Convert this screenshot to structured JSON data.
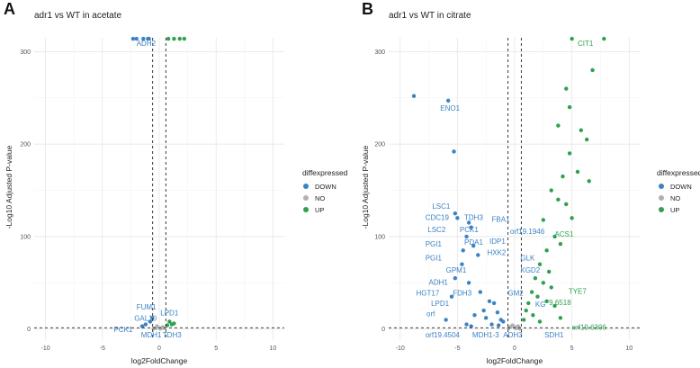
{
  "colors": {
    "down": "#3b82c4",
    "no": "#b0b0b0",
    "up": "#2ea04f",
    "grid_major": "#e6e6e6",
    "grid_minor": "#f3f3f3"
  },
  "legend": {
    "title": "diffexpressed",
    "items": [
      {
        "label": "DOWN",
        "key": "down"
      },
      {
        "label": "NO",
        "key": "no"
      },
      {
        "label": "UP",
        "key": "up"
      }
    ]
  },
  "chart_data": [
    {
      "panel_label": "A",
      "type": "scatter",
      "title": "adr1 vs WT in acetate",
      "xlabel": "log2FoldChange",
      "ylabel": "-Log10 Adjusted P-value",
      "xlim": [
        -11,
        11
      ],
      "ylim": [
        -12,
        315
      ],
      "xticks": [
        "-10",
        "-5",
        "0",
        "5",
        "10"
      ],
      "yticks": [
        "0",
        "100",
        "200",
        "300"
      ],
      "xtick_values": [
        -10,
        -5,
        0,
        5,
        10
      ],
      "ytick_values": [
        0,
        100,
        200,
        300
      ],
      "vlines": [
        -0.58,
        0.58
      ],
      "hline": 1.3,
      "legend_position": "right",
      "points": {
        "down": [
          [
            -2.0,
            314
          ],
          [
            -2.3,
            314
          ],
          [
            -1.4,
            314
          ],
          [
            -1.0,
            314
          ],
          [
            -0.9,
            314
          ],
          [
            -0.6,
            12
          ],
          [
            -0.8,
            8
          ],
          [
            -1.2,
            5
          ],
          [
            -1.5,
            3
          ]
        ],
        "no": [
          [
            -0.3,
            1
          ],
          [
            0.1,
            0.5
          ],
          [
            0.3,
            2
          ],
          [
            -0.2,
            3
          ],
          [
            0.4,
            1
          ],
          [
            -0.5,
            0.5
          ]
        ],
        "up": [
          [
            0.8,
            314
          ],
          [
            1.3,
            314
          ],
          [
            1.8,
            314
          ],
          [
            2.2,
            314
          ],
          [
            0.9,
            8
          ],
          [
            1.1,
            5
          ],
          [
            0.7,
            4
          ],
          [
            1.3,
            6
          ]
        ]
      },
      "labels": [
        {
          "text": "ADH2",
          "x": -2.0,
          "y": 306,
          "color": "down"
        },
        {
          "text": "FUM1",
          "x": -2.0,
          "y": 21,
          "color": "down"
        },
        {
          "text": "GAL10",
          "x": -2.2,
          "y": 9,
          "color": "down"
        },
        {
          "text": "LPD1",
          "x": 0.1,
          "y": 15,
          "color": "down"
        },
        {
          "text": "PCK1",
          "x": -4.0,
          "y": -3,
          "color": "down"
        },
        {
          "text": "MDH1",
          "x": -1.6,
          "y": -9,
          "color": "down"
        },
        {
          "text": "TDH3",
          "x": 0.3,
          "y": -9,
          "color": "down"
        }
      ]
    },
    {
      "panel_label": "B",
      "type": "scatter",
      "title": "adr1 vs WT in citrate",
      "xlabel": "log2FoldChange",
      "ylabel": "-Log10 Adjusted P-value",
      "xlim": [
        -11,
        11
      ],
      "ylim": [
        -12,
        315
      ],
      "xticks": [
        "-10",
        "-5",
        "0",
        "5",
        "10"
      ],
      "yticks": [
        "0",
        "100",
        "200",
        "300"
      ],
      "xtick_values": [
        -10,
        -5,
        0,
        5,
        10
      ],
      "ytick_values": [
        0,
        100,
        200,
        300
      ],
      "vlines": [
        -0.58,
        0.58
      ],
      "hline": 1.3,
      "legend_position": "right",
      "points": {
        "down": [
          [
            -8.8,
            252
          ],
          [
            -5.8,
            247
          ],
          [
            -5.3,
            192
          ],
          [
            -5.2,
            125
          ],
          [
            -4.0,
            115
          ],
          [
            -3.8,
            110
          ],
          [
            -4.2,
            100
          ],
          [
            -3.6,
            90
          ],
          [
            -3.2,
            80
          ],
          [
            -4.6,
            70
          ],
          [
            -5.2,
            55
          ],
          [
            -4.0,
            50
          ],
          [
            -5.5,
            35
          ],
          [
            -3.0,
            40
          ],
          [
            -2.2,
            30
          ],
          [
            -1.8,
            28
          ],
          [
            -2.7,
            20
          ],
          [
            -1.5,
            18
          ],
          [
            -3.5,
            15
          ],
          [
            -2.5,
            12
          ],
          [
            -1.2,
            10
          ],
          [
            -1.0,
            8
          ],
          [
            -6.0,
            10
          ],
          [
            -4.2,
            5
          ],
          [
            -3.8,
            3
          ],
          [
            -2.0,
            5
          ],
          [
            -1.4,
            4
          ],
          [
            -5.0,
            120
          ],
          [
            -4.5,
            85
          ]
        ],
        "no": [
          [
            -0.4,
            2
          ],
          [
            0.1,
            1
          ],
          [
            0.3,
            3
          ],
          [
            -0.2,
            4
          ],
          [
            0.4,
            0.5
          ],
          [
            -0.5,
            1
          ],
          [
            0.0,
            2
          ]
        ],
        "up": [
          [
            5.0,
            314
          ],
          [
            7.8,
            314
          ],
          [
            6.8,
            280
          ],
          [
            4.5,
            260
          ],
          [
            4.8,
            240
          ],
          [
            3.8,
            220
          ],
          [
            5.8,
            215
          ],
          [
            6.3,
            205
          ],
          [
            4.8,
            190
          ],
          [
            5.5,
            170
          ],
          [
            4.2,
            165
          ],
          [
            6.5,
            160
          ],
          [
            3.2,
            150
          ],
          [
            3.8,
            140
          ],
          [
            4.5,
            135
          ],
          [
            5.0,
            120
          ],
          [
            2.5,
            118
          ],
          [
            3.5,
            100
          ],
          [
            4.0,
            92
          ],
          [
            2.8,
            85
          ],
          [
            2.2,
            70
          ],
          [
            3.0,
            62
          ],
          [
            1.8,
            55
          ],
          [
            2.5,
            50
          ],
          [
            3.2,
            45
          ],
          [
            1.5,
            40
          ],
          [
            2.0,
            35
          ],
          [
            1.2,
            28
          ],
          [
            2.8,
            30
          ],
          [
            1.0,
            20
          ],
          [
            1.6,
            15
          ],
          [
            0.8,
            10
          ],
          [
            3.5,
            25
          ],
          [
            4.0,
            12
          ],
          [
            2.2,
            8
          ]
        ]
      },
      "labels": [
        {
          "text": "CIT1",
          "x": 5.5,
          "y": 306,
          "color": "up"
        },
        {
          "text": "ENO1",
          "x": -6.5,
          "y": 236,
          "color": "down"
        },
        {
          "text": "LSC1",
          "x": -7.2,
          "y": 130,
          "color": "down"
        },
        {
          "text": "CDC19",
          "x": -7.8,
          "y": 118,
          "color": "down"
        },
        {
          "text": "TDH3",
          "x": -4.4,
          "y": 118,
          "color": "down"
        },
        {
          "text": "FBA1",
          "x": -2.0,
          "y": 116,
          "color": "down"
        },
        {
          "text": "LSC2",
          "x": -7.6,
          "y": 105,
          "color": "down"
        },
        {
          "text": "PCK1",
          "x": -4.8,
          "y": 105,
          "color": "down"
        },
        {
          "text": "orf19.1946",
          "x": -0.4,
          "y": 103,
          "color": "down"
        },
        {
          "text": "PGI1",
          "x": -7.8,
          "y": 89,
          "color": "down"
        },
        {
          "text": "PDA1",
          "x": -4.4,
          "y": 91,
          "color": "down"
        },
        {
          "text": "IDP1",
          "x": -2.2,
          "y": 92,
          "color": "down"
        },
        {
          "text": "HXK2",
          "x": -2.4,
          "y": 80,
          "color": "down"
        },
        {
          "text": "PGI1",
          "x": -7.8,
          "y": 74,
          "color": "down"
        },
        {
          "text": "GPM1",
          "x": -6.0,
          "y": 61,
          "color": "down"
        },
        {
          "text": "KGD2",
          "x": 0.5,
          "y": 61,
          "color": "down"
        },
        {
          "text": "GLK",
          "x": 0.5,
          "y": 74,
          "color": "down"
        },
        {
          "text": "ADH1",
          "x": -7.5,
          "y": 48,
          "color": "down"
        },
        {
          "text": "HGT17",
          "x": -8.6,
          "y": 36,
          "color": "down"
        },
        {
          "text": "FDH3",
          "x": -5.4,
          "y": 36,
          "color": "down"
        },
        {
          "text": "GM2",
          "x": -0.6,
          "y": 36,
          "color": "down"
        },
        {
          "text": "LPD1",
          "x": -7.3,
          "y": 25,
          "color": "down"
        },
        {
          "text": "KG",
          "x": 1.8,
          "y": 24,
          "color": "down"
        },
        {
          "text": "orf",
          "x": -7.7,
          "y": 14,
          "color": "down"
        },
        {
          "text": "TYE7",
          "x": 4.7,
          "y": 38,
          "color": "up"
        },
        {
          "text": "ACS1",
          "x": 3.5,
          "y": 100,
          "color": "up"
        },
        {
          "text": "9.6518",
          "x": 3.0,
          "y": 26,
          "color": "up"
        },
        {
          "text": "orf19.6306",
          "x": 5.0,
          "y": -1,
          "color": "up"
        },
        {
          "text": "orf19.4504",
          "x": -7.8,
          "y": -9,
          "color": "down"
        },
        {
          "text": "MDH1-3",
          "x": -3.7,
          "y": -9,
          "color": "down"
        },
        {
          "text": "ADH3",
          "x": -1.0,
          "y": -9,
          "color": "down"
        },
        {
          "text": "SDH1",
          "x": 2.6,
          "y": -9,
          "color": "down"
        }
      ]
    }
  ]
}
